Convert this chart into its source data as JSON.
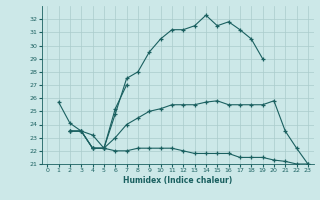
{
  "xlabel": "Humidex (Indice chaleur)",
  "bg_color": "#cce8e8",
  "grid_color": "#aacccc",
  "line_color": "#1a6060",
  "xlim": [
    -0.5,
    23.5
  ],
  "ylim": [
    21,
    33
  ],
  "yticks": [
    21,
    22,
    23,
    24,
    25,
    26,
    27,
    28,
    29,
    30,
    31,
    32
  ],
  "xticks": [
    0,
    1,
    2,
    3,
    4,
    5,
    6,
    7,
    8,
    9,
    10,
    11,
    12,
    13,
    14,
    15,
    16,
    17,
    18,
    19,
    20,
    21,
    22,
    23
  ],
  "lines": [
    {
      "x": [
        1,
        2,
        3,
        4,
        5,
        6,
        7,
        8,
        9,
        10,
        11,
        12,
        13,
        14,
        15,
        16,
        17,
        18,
        19
      ],
      "y": [
        25.7,
        24.1,
        23.5,
        22.2,
        22.2,
        24.8,
        27.5,
        28.0,
        29.5,
        30.5,
        31.2,
        31.2,
        31.5,
        32.3,
        31.5,
        31.8,
        31.2,
        30.5,
        29.0
      ]
    },
    {
      "x": [
        2,
        3,
        4,
        5,
        6,
        7
      ],
      "y": [
        23.5,
        23.5,
        23.2,
        22.2,
        25.2,
        27.0
      ]
    },
    {
      "x": [
        2,
        3,
        4,
        5,
        6,
        7,
        8,
        9,
        10,
        11,
        12,
        13,
        14,
        15,
        16,
        17,
        18,
        19,
        20,
        21,
        22,
        23
      ],
      "y": [
        23.5,
        23.5,
        22.2,
        22.2,
        23.0,
        24.0,
        24.5,
        25.0,
        25.2,
        25.5,
        25.5,
        25.5,
        25.7,
        25.8,
        25.5,
        25.5,
        25.5,
        25.5,
        25.8,
        23.5,
        22.2,
        21.0
      ]
    },
    {
      "x": [
        2,
        3,
        4,
        5,
        6,
        7,
        8,
        9,
        10,
        11,
        12,
        13,
        14,
        15,
        16,
        17,
        18,
        19,
        20,
        21,
        22,
        23
      ],
      "y": [
        23.5,
        23.5,
        22.2,
        22.2,
        22.0,
        22.0,
        22.2,
        22.2,
        22.2,
        22.2,
        22.0,
        21.8,
        21.8,
        21.8,
        21.8,
        21.5,
        21.5,
        21.5,
        21.3,
        21.2,
        21.0,
        21.0
      ]
    }
  ]
}
